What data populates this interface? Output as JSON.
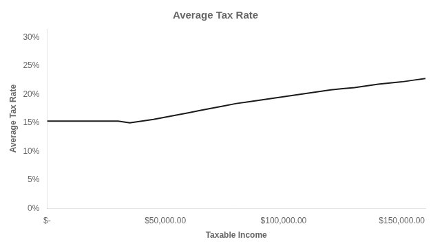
{
  "chart_data": {
    "type": "line",
    "title": "Average Tax Rate",
    "xlabel": "Taxable Income",
    "ylabel": "Average Tax Rate",
    "color": "#1a1a1a",
    "x": [
      0,
      5000,
      10000,
      15000,
      20000,
      25000,
      30000,
      32000,
      35000,
      40000,
      45000,
      50000,
      55000,
      60000,
      65000,
      70000,
      75000,
      80000,
      85000,
      90000,
      95000,
      100000,
      105000,
      110000,
      115000,
      120000,
      125000,
      130000,
      135000,
      140000,
      145000,
      150000,
      155000,
      160000
    ],
    "values": [
      0.153,
      0.153,
      0.153,
      0.153,
      0.153,
      0.153,
      0.153,
      0.152,
      0.15,
      0.153,
      0.156,
      0.16,
      0.164,
      0.168,
      0.172,
      0.176,
      0.18,
      0.184,
      0.187,
      0.19,
      0.193,
      0.196,
      0.199,
      0.202,
      0.205,
      0.208,
      0.21,
      0.212,
      0.215,
      0.218,
      0.22,
      0.222,
      0.225,
      0.228
    ],
    "xlim": [
      0,
      160000
    ],
    "xticks": [
      {
        "value": 0,
        "label": "$-"
      },
      {
        "value": 50000,
        "label": "$50,000.00"
      },
      {
        "value": 100000,
        "label": "$100,000.00"
      },
      {
        "value": 150000,
        "label": "$150,000.00"
      }
    ],
    "ylim": [
      0,
      0.315
    ],
    "yticks": [
      {
        "value": 0.0,
        "label": "0%"
      },
      {
        "value": 0.05,
        "label": "5%"
      },
      {
        "value": 0.1,
        "label": "10%"
      },
      {
        "value": 0.15,
        "label": "15%"
      },
      {
        "value": 0.2,
        "label": "20%"
      },
      {
        "value": 0.25,
        "label": "25%"
      },
      {
        "value": 0.3,
        "label": "30%"
      }
    ],
    "grid": false
  }
}
